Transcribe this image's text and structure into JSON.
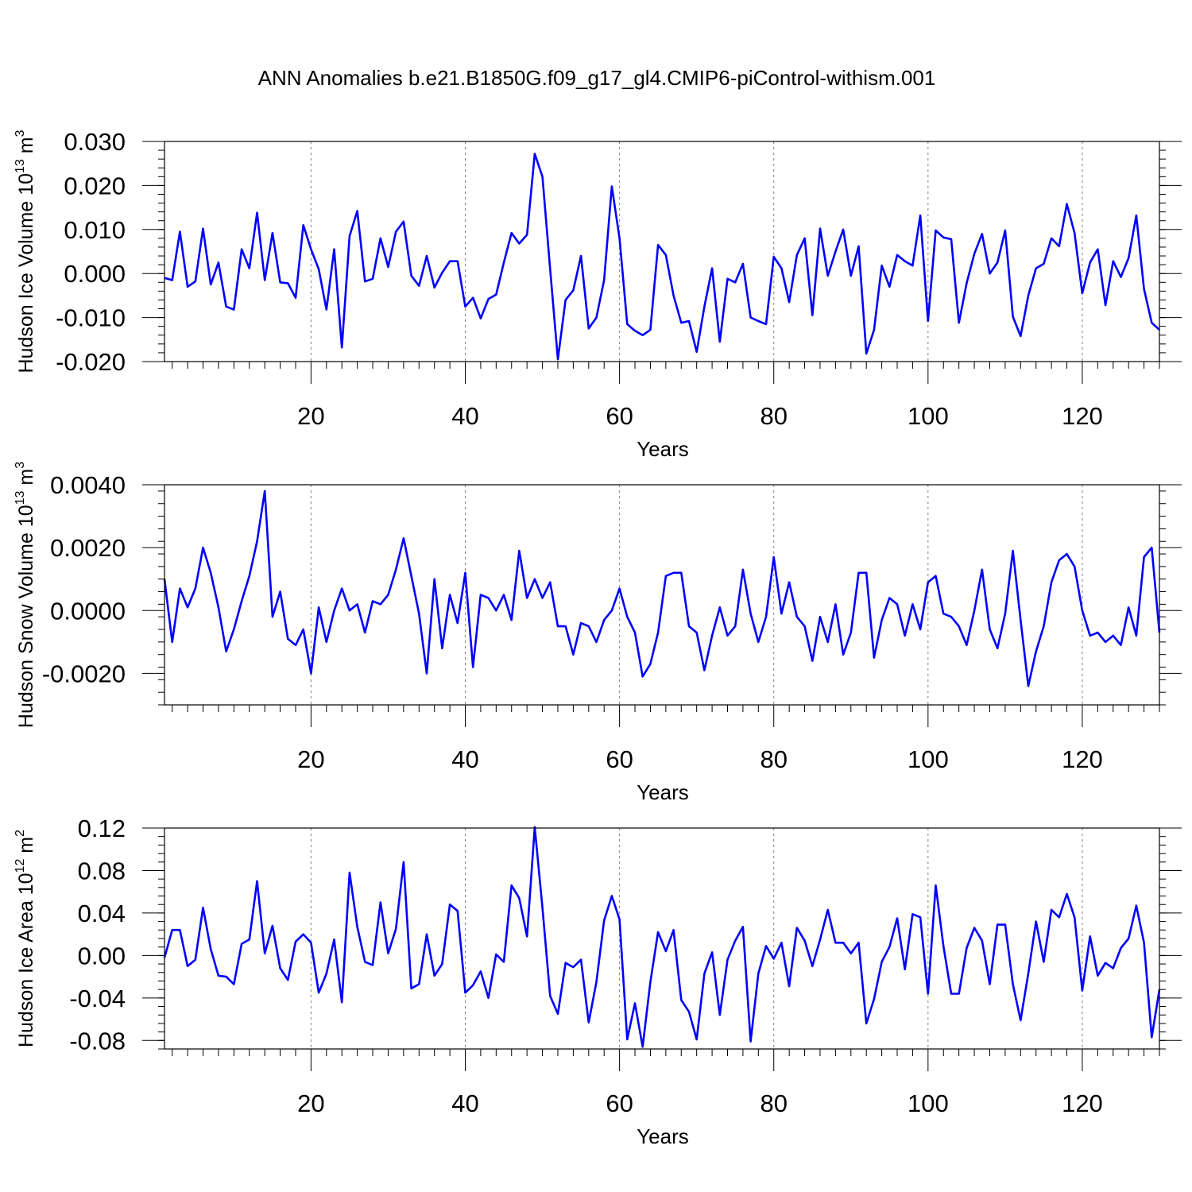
{
  "title": "ANN Anomalies b.e21.B1850G.f09_g17_gl4.CMIP6-piControl-withism.001",
  "colors": {
    "series": "#0000ff",
    "grid": "#808080",
    "axis": "#000000"
  },
  "chart_data": [
    {
      "type": "line",
      "ylabel": "Hudson Ice Volume 10",
      "ylabel_exp": "13",
      "ylabel_unit": "m",
      "ylabel_unit_exp": "3",
      "xlabel": "Years",
      "xlim": [
        1,
        130
      ],
      "ylim": [
        -0.02,
        0.03
      ],
      "yticks": [
        -0.02,
        -0.01,
        0.0,
        0.01,
        0.02,
        0.03
      ],
      "yticklabels": [
        "-0.020",
        "-0.010",
        "0.000",
        "0.010",
        "0.020",
        "0.030"
      ],
      "xticks": [
        20,
        40,
        60,
        80,
        100,
        120
      ],
      "xticklabels": [
        "20",
        "40",
        "60",
        "80",
        "100",
        "120"
      ],
      "grid_x": [
        20,
        40,
        60,
        80,
        100,
        120
      ],
      "x_start": 1,
      "values": [
        -0.001,
        -0.0015,
        0.0095,
        -0.003,
        -0.0018,
        0.0102,
        -0.0025,
        0.0025,
        -0.0075,
        -0.0082,
        0.0055,
        0.0012,
        0.0138,
        -0.0015,
        0.0092,
        -0.002,
        -0.0022,
        -0.0055,
        0.011,
        0.0055,
        0.001,
        -0.0082,
        0.0055,
        -0.0168,
        0.0085,
        0.0142,
        -0.0018,
        -0.0012,
        0.008,
        0.0015,
        0.0095,
        0.0118,
        -0.0005,
        -0.0028,
        0.004,
        -0.0032,
        0.0002,
        0.0028,
        0.0028,
        -0.0075,
        -0.0055,
        -0.0102,
        -0.0058,
        -0.0048,
        0.0025,
        0.0092,
        0.0068,
        0.0088,
        0.0272,
        0.022,
        0.001,
        -0.0195,
        -0.006,
        -0.0038,
        0.004,
        -0.0125,
        -0.01,
        -0.0015,
        0.0198,
        0.008,
        -0.0115,
        -0.013,
        -0.014,
        -0.0128,
        0.0065,
        0.0042,
        -0.005,
        -0.0112,
        -0.0108,
        -0.0178,
        -0.0075,
        0.0012,
        -0.0155,
        -0.0012,
        -0.002,
        0.0022,
        -0.01,
        -0.0108,
        -0.0115,
        0.0038,
        0.0012,
        -0.0065,
        0.0042,
        0.008,
        -0.0095,
        0.0102,
        -0.0005,
        0.005,
        0.01,
        -0.0005,
        0.0062,
        -0.0182,
        -0.0128,
        0.0018,
        -0.003,
        0.0042,
        0.0028,
        0.0018,
        0.0132,
        -0.0108,
        0.0098,
        0.0082,
        0.0078,
        -0.0112,
        -0.0022,
        0.0045,
        0.009,
        0.0,
        0.0025,
        0.0098,
        -0.0098,
        -0.0142,
        -0.005,
        0.0012,
        0.0022,
        0.008,
        0.0062,
        0.0158,
        0.0092,
        -0.0045,
        0.0025,
        0.0055,
        -0.0072,
        0.0028,
        -0.0008,
        0.0035,
        0.0132,
        -0.0035,
        -0.0112,
        -0.0128
      ]
    },
    {
      "type": "line",
      "ylabel": "Hudson Snow Volume 10",
      "ylabel_exp": "13",
      "ylabel_unit": "m",
      "ylabel_unit_exp": "3",
      "xlabel": "Years",
      "xlim": [
        1,
        130
      ],
      "ylim": [
        -0.003,
        0.004
      ],
      "yticks": [
        -0.002,
        0.0,
        0.002,
        0.004
      ],
      "yticklabels": [
        "-0.0020",
        "0.0000",
        "0.0020",
        "0.0040"
      ],
      "xticks": [
        20,
        40,
        60,
        80,
        100,
        120
      ],
      "xticklabels": [
        "20",
        "40",
        "60",
        "80",
        "100",
        "120"
      ],
      "grid_x": [
        20,
        40,
        60,
        80,
        100,
        120
      ],
      "x_start": 1,
      "values": [
        0.001,
        -0.001,
        0.0007,
        0.0001,
        0.0007,
        0.002,
        0.0012,
        0.0001,
        -0.0013,
        -0.0006,
        0.0003,
        0.0011,
        0.0022,
        0.0038,
        -0.0002,
        0.0006,
        -0.0009,
        -0.0011,
        -0.0006,
        -0.002,
        0.0001,
        -0.001,
        0.0,
        0.0007,
        0.0,
        0.0002,
        -0.0007,
        0.0003,
        0.0002,
        0.0005,
        0.0013,
        0.0023,
        0.0011,
        -0.0001,
        -0.002,
        0.001,
        -0.0012,
        0.0005,
        -0.0004,
        0.0012,
        -0.0018,
        0.0005,
        0.0004,
        0.0,
        0.0005,
        -0.0003,
        0.0019,
        0.0004,
        0.001,
        0.0004,
        0.0009,
        -0.0005,
        -0.0005,
        -0.0014,
        -0.0004,
        -0.0005,
        -0.001,
        -0.0003,
        0.0,
        0.0007,
        -0.0002,
        -0.0007,
        -0.0021,
        -0.0017,
        -0.0007,
        0.0011,
        0.0012,
        0.0012,
        -0.0005,
        -0.0007,
        -0.0019,
        -0.0008,
        0.0001,
        -0.0008,
        -0.0005,
        0.0013,
        -0.0001,
        -0.001,
        -0.0002,
        0.0017,
        -0.0001,
        0.0009,
        -0.0002,
        -0.0005,
        -0.0016,
        -0.0002,
        -0.001,
        0.0002,
        -0.0014,
        -0.0007,
        0.0012,
        0.0012,
        -0.0015,
        -0.0003,
        0.0004,
        0.0002,
        -0.0008,
        0.0002,
        -0.0006,
        0.0009,
        0.0011,
        -0.0001,
        -0.0002,
        -0.0005,
        -0.0011,
        0.0,
        0.0013,
        -0.0006,
        -0.0012,
        -0.0001,
        0.0019,
        -0.0003,
        -0.0024,
        -0.0013,
        -0.0005,
        0.0009,
        0.0016,
        0.0018,
        0.0014,
        0.0,
        -0.0008,
        -0.0007,
        -0.001,
        -0.0008,
        -0.0011,
        0.0001,
        -0.0008,
        0.0017,
        0.002,
        -0.0007
      ]
    },
    {
      "type": "line",
      "ylabel": "Hudson Ice Area 10",
      "ylabel_exp": "12",
      "ylabel_unit": "m",
      "ylabel_unit_exp": "2",
      "xlabel": "Years",
      "xlim": [
        1,
        130
      ],
      "ylim": [
        -0.088,
        0.12
      ],
      "yticks": [
        -0.08,
        -0.04,
        0.0,
        0.04,
        0.08,
        0.12
      ],
      "yticklabels": [
        "-0.08",
        "-0.04",
        "0.00",
        "0.04",
        "0.08",
        "0.12"
      ],
      "xticks": [
        20,
        40,
        60,
        80,
        100,
        120
      ],
      "xticklabels": [
        "20",
        "40",
        "60",
        "80",
        "100",
        "120"
      ],
      "grid_x": [
        20,
        40,
        60,
        80,
        100,
        120
      ],
      "x_start": 1,
      "values": [
        -0.002,
        0.024,
        0.024,
        -0.01,
        -0.004,
        0.045,
        0.006,
        -0.019,
        -0.02,
        -0.027,
        0.011,
        0.015,
        0.07,
        0.002,
        0.028,
        -0.012,
        -0.023,
        0.013,
        0.02,
        0.012,
        -0.035,
        -0.017,
        0.015,
        -0.044,
        0.078,
        0.027,
        -0.006,
        -0.009,
        0.05,
        0.002,
        0.025,
        0.088,
        -0.031,
        -0.027,
        0.02,
        -0.019,
        -0.008,
        0.048,
        0.042,
        -0.035,
        -0.028,
        -0.015,
        -0.04,
        0.001,
        -0.006,
        0.066,
        0.054,
        0.018,
        0.121,
        0.045,
        -0.038,
        -0.055,
        -0.007,
        -0.011,
        -0.004,
        -0.063,
        -0.025,
        0.033,
        0.056,
        0.034,
        -0.079,
        -0.045,
        -0.086,
        -0.025,
        0.022,
        0.004,
        0.024,
        -0.042,
        -0.053,
        -0.079,
        -0.017,
        0.003,
        -0.056,
        -0.004,
        0.014,
        0.027,
        -0.081,
        -0.017,
        0.009,
        -0.003,
        0.012,
        -0.029,
        0.026,
        0.014,
        -0.01,
        0.015,
        0.043,
        0.012,
        0.012,
        0.002,
        0.012,
        -0.064,
        -0.041,
        -0.006,
        0.008,
        0.035,
        -0.013,
        0.039,
        0.036,
        -0.036,
        0.066,
        0.009,
        -0.036,
        -0.036,
        0.007,
        0.026,
        0.014,
        -0.027,
        0.029,
        0.029,
        -0.027,
        -0.061,
        -0.017,
        0.032,
        -0.006,
        0.043,
        0.036,
        0.058,
        0.036,
        -0.033,
        0.018,
        -0.019,
        -0.007,
        -0.012,
        0.007,
        0.016,
        0.047,
        0.012,
        -0.077,
        -0.032
      ]
    }
  ]
}
